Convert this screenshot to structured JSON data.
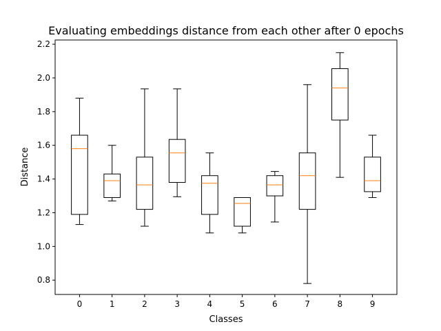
{
  "chart_data": {
    "type": "box",
    "title": "Evaluating embeddings distance from each other after 0 epochs",
    "xlabel": "Classes",
    "ylabel": "Distance",
    "categories": [
      "0",
      "1",
      "2",
      "3",
      "4",
      "5",
      "6",
      "7",
      "8",
      "9"
    ],
    "y_ticks": [
      "0.8",
      "1.0",
      "1.2",
      "1.4",
      "1.6",
      "1.8",
      "2.0",
      "2.2"
    ],
    "ylim": [
      0.715,
      2.225
    ],
    "grid": false,
    "colors": {
      "box": "#000000",
      "median": "#ff7f0e",
      "background": "#ffffff"
    },
    "boxes": [
      {
        "class": "0",
        "whisker_low": 1.13,
        "q1": 1.19,
        "median": 1.58,
        "q3": 1.66,
        "whisker_high": 1.88
      },
      {
        "class": "1",
        "whisker_low": 1.27,
        "q1": 1.29,
        "median": 1.39,
        "q3": 1.43,
        "whisker_high": 1.6
      },
      {
        "class": "2",
        "whisker_low": 1.12,
        "q1": 1.22,
        "median": 1.365,
        "q3": 1.53,
        "whisker_high": 1.935
      },
      {
        "class": "3",
        "whisker_low": 1.295,
        "q1": 1.38,
        "median": 1.555,
        "q3": 1.635,
        "whisker_high": 1.935
      },
      {
        "class": "4",
        "whisker_low": 1.08,
        "q1": 1.19,
        "median": 1.375,
        "q3": 1.42,
        "whisker_high": 1.555
      },
      {
        "class": "5",
        "whisker_low": 1.08,
        "q1": 1.12,
        "median": 1.255,
        "q3": 1.29,
        "whisker_high": 1.29
      },
      {
        "class": "6",
        "whisker_low": 1.145,
        "q1": 1.3,
        "median": 1.365,
        "q3": 1.42,
        "whisker_high": 1.445
      },
      {
        "class": "7",
        "whisker_low": 0.78,
        "q1": 1.22,
        "median": 1.42,
        "q3": 1.555,
        "whisker_high": 1.96
      },
      {
        "class": "8",
        "whisker_low": 1.41,
        "q1": 1.75,
        "median": 1.94,
        "q3": 2.055,
        "whisker_high": 2.15
      },
      {
        "class": "9",
        "whisker_low": 1.29,
        "q1": 1.325,
        "median": 1.39,
        "q3": 1.53,
        "whisker_high": 1.66
      }
    ]
  }
}
